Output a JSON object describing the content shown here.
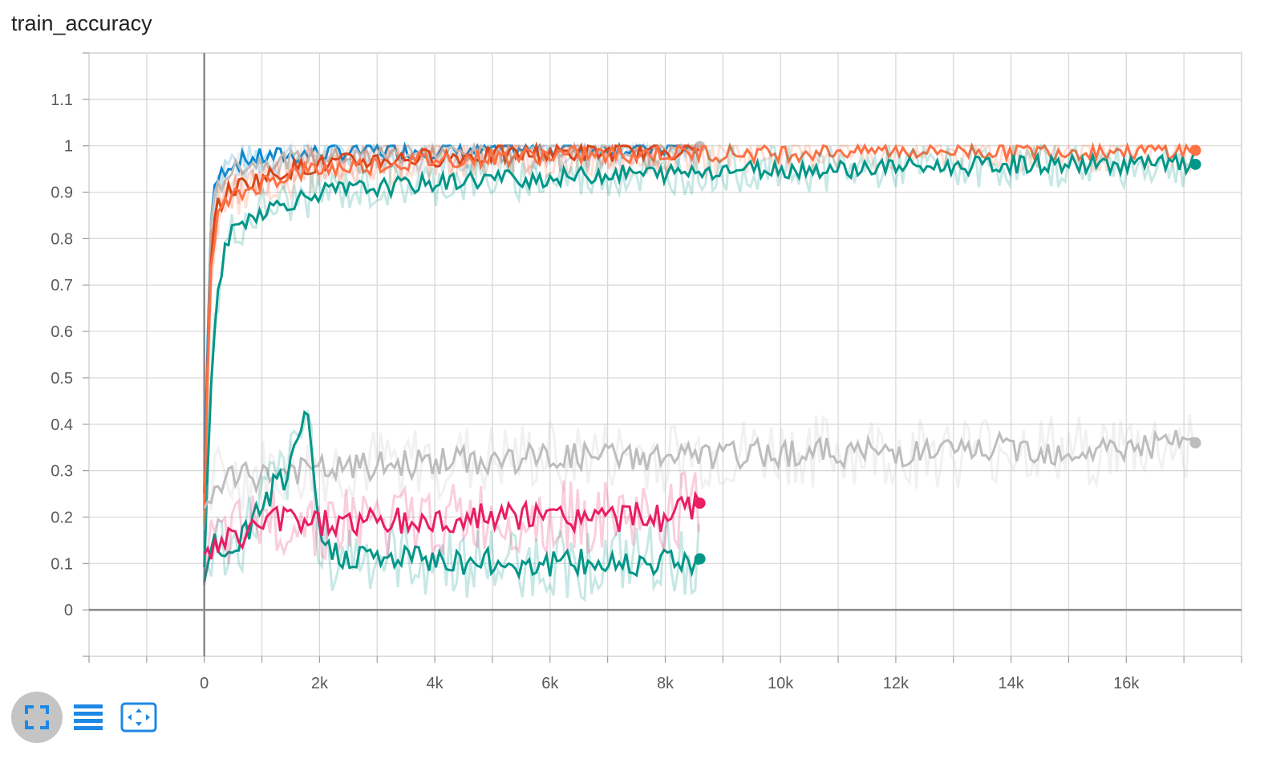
{
  "card": {
    "title": "train_accuracy"
  },
  "toolbar": {
    "expand_icon": "fullscreen-icon",
    "log_icon": "list-lines-icon",
    "fit_icon": "fit-domain-icon",
    "accent": "#1e88e5"
  },
  "chart_data": {
    "type": "line",
    "title": "train_accuracy",
    "xlabel": "",
    "ylabel": "",
    "xlim": [
      -2000,
      18000
    ],
    "ylim": [
      -0.1,
      1.2
    ],
    "x_ticks": [
      0,
      2000,
      4000,
      6000,
      8000,
      10000,
      12000,
      14000,
      16000
    ],
    "x_tick_labels": [
      "0",
      "2k",
      "4k",
      "6k",
      "8k",
      "10k",
      "12k",
      "14k",
      "16k"
    ],
    "y_ticks": [
      0,
      0.1,
      0.2,
      0.3,
      0.4,
      0.5,
      0.6,
      0.7,
      0.8,
      0.9,
      1,
      1.1
    ],
    "y_tick_labels": [
      "0",
      "0.1",
      "0.2",
      "0.3",
      "0.4",
      "0.5",
      "0.6",
      "0.7",
      "0.8",
      "0.9",
      "1",
      "1.1"
    ],
    "grid": true,
    "legend": "none",
    "series": [
      {
        "color": "#0288d1",
        "end_marker": false,
        "x": [
          0,
          100,
          200,
          400,
          700,
          1000,
          1500,
          2000,
          3000,
          4000,
          5000,
          6000,
          7000,
          8000,
          8600
        ],
        "y": [
          0.25,
          0.82,
          0.92,
          0.96,
          0.97,
          0.975,
          0.98,
          0.985,
          0.99,
          0.99,
          0.99,
          0.995,
          0.995,
          0.995,
          0.998
        ]
      },
      {
        "color": "#bdbdbd",
        "end_marker": true,
        "x": [
          0,
          100,
          200,
          400,
          700,
          1000,
          1500,
          2000,
          3000,
          4000,
          5000,
          6000,
          7000,
          8000,
          8600
        ],
        "y": [
          0.2,
          0.8,
          0.9,
          0.94,
          0.96,
          0.965,
          0.97,
          0.975,
          0.98,
          0.985,
          0.985,
          0.99,
          0.99,
          0.995,
          0.998
        ]
      },
      {
        "color": "#d84315",
        "end_marker": false,
        "x": [
          0,
          100,
          200,
          400,
          700,
          1000,
          1500,
          2000,
          3000,
          4000,
          5000,
          6000,
          7000,
          8000,
          8600
        ],
        "y": [
          0.2,
          0.75,
          0.86,
          0.9,
          0.92,
          0.93,
          0.95,
          0.96,
          0.97,
          0.975,
          0.98,
          0.985,
          0.985,
          0.99,
          0.99
        ]
      },
      {
        "color": "#ff7043",
        "end_marker": true,
        "x": [
          0,
          100,
          200,
          400,
          700,
          1000,
          1500,
          2000,
          3000,
          4000,
          5000,
          6000,
          7000,
          8000,
          9000,
          10000,
          11000,
          12000,
          13000,
          14000,
          15000,
          16000,
          17200
        ],
        "y": [
          0.2,
          0.7,
          0.84,
          0.88,
          0.9,
          0.92,
          0.94,
          0.95,
          0.96,
          0.97,
          0.975,
          0.98,
          0.98,
          0.985,
          0.985,
          0.985,
          0.99,
          0.99,
          0.99,
          0.99,
          0.99,
          0.99,
          0.99
        ]
      },
      {
        "color": "#009688",
        "end_marker": true,
        "x": [
          0,
          100,
          200,
          400,
          700,
          1000,
          1500,
          2000,
          3000,
          4000,
          5000,
          6000,
          7000,
          8000,
          9000,
          10000,
          11000,
          12000,
          13000,
          14000,
          15000,
          16000,
          17200
        ],
        "y": [
          0.1,
          0.45,
          0.65,
          0.8,
          0.84,
          0.86,
          0.88,
          0.9,
          0.91,
          0.92,
          0.93,
          0.93,
          0.94,
          0.94,
          0.95,
          0.95,
          0.95,
          0.955,
          0.955,
          0.96,
          0.96,
          0.96,
          0.96
        ]
      },
      {
        "color": "#bdbdbd",
        "end_marker": true,
        "x": [
          0,
          200,
          500,
          1000,
          1500,
          2000,
          3000,
          4000,
          5000,
          6000,
          7000,
          8000,
          9000,
          10000,
          11000,
          12000,
          13000,
          14000,
          15000,
          16000,
          17200
        ],
        "y": [
          0.2,
          0.27,
          0.28,
          0.29,
          0.3,
          0.3,
          0.31,
          0.32,
          0.32,
          0.33,
          0.33,
          0.33,
          0.33,
          0.34,
          0.34,
          0.34,
          0.34,
          0.35,
          0.34,
          0.35,
          0.36
        ]
      },
      {
        "color": "#009688",
        "end_marker": true,
        "x": [
          0,
          200,
          500,
          800,
          1000,
          1200,
          1500,
          1700,
          1800,
          1900,
          2000,
          2200,
          2500,
          3000,
          4000,
          5000,
          6000,
          7000,
          8000,
          8600
        ],
        "y": [
          0.08,
          0.14,
          0.12,
          0.18,
          0.23,
          0.26,
          0.3,
          0.38,
          0.42,
          0.3,
          0.15,
          0.12,
          0.12,
          0.11,
          0.11,
          0.1,
          0.1,
          0.1,
          0.11,
          0.11
        ]
      },
      {
        "color": "#e91e63",
        "end_marker": true,
        "x": [
          0,
          200,
          500,
          800,
          1000,
          1500,
          2000,
          3000,
          4000,
          5000,
          6000,
          7000,
          8000,
          8600
        ],
        "y": [
          0.1,
          0.14,
          0.15,
          0.17,
          0.19,
          0.2,
          0.19,
          0.19,
          0.19,
          0.2,
          0.2,
          0.2,
          0.2,
          0.23
        ]
      }
    ]
  }
}
